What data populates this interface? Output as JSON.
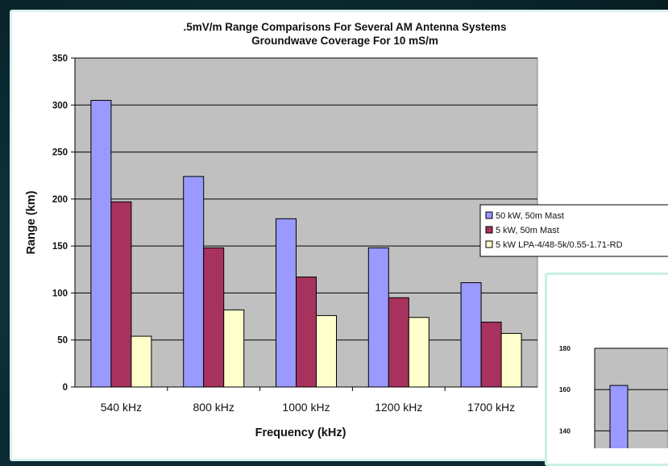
{
  "chart_data": [
    {
      "type": "bar",
      "title": ".5mV/m Range Comparisons For Several AM  Antenna Systems",
      "subtitle": "Groundwave Coverage For 10 mS/m",
      "xlabel": "Frequency (kHz)",
      "ylabel": "Range (km)",
      "ylim": [
        0,
        350
      ],
      "yticks": [
        0,
        50,
        100,
        150,
        200,
        250,
        300,
        350
      ],
      "grid": true,
      "legend_position": "right",
      "categories": [
        "540 kHz",
        "800 kHz",
        "1000 kHz",
        "1200 kHz",
        "1700 kHz"
      ],
      "series": [
        {
          "name": "50 kW, 50m Mast",
          "color": "#9999ff",
          "values": [
            305,
            224,
            179,
            148,
            111
          ]
        },
        {
          "name": "5 kW, 50m Mast",
          "color": "#a8325e",
          "values": [
            197,
            148,
            117,
            95,
            69
          ]
        },
        {
          "name": "5 kW LPA-4/48-5k/0.55-1.71-RD",
          "color": "#ffffcc",
          "values": [
            54,
            82,
            76,
            74,
            57
          ]
        }
      ]
    },
    {
      "type": "bar",
      "ylim": [
        130,
        180
      ],
      "yticks": [
        180,
        160,
        140
      ],
      "grid": true,
      "series": [
        {
          "color": "#9999ff",
          "values": [
            162
          ]
        }
      ]
    }
  ]
}
